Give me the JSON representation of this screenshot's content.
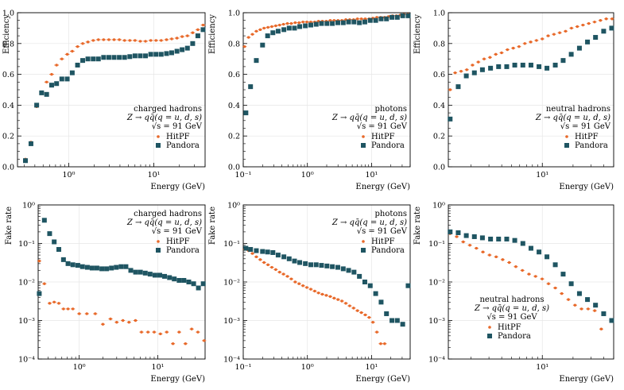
{
  "colors": {
    "hitpf": "#e8692a",
    "pandora": "#1f5562",
    "grid": "#e6e6e6"
  },
  "chart_data": [
    {
      "type": "scatter",
      "xscale": "log",
      "xlim": [
        0.25,
        40
      ],
      "yscale": "linear",
      "ylim": [
        0,
        1
      ],
      "xlabel": "Energy (GeV)",
      "ylabel": "Efficiency",
      "xticklabels": [
        "10^0",
        "10^1"
      ],
      "yticklabels": [
        "0.0",
        "0.2",
        "0.4",
        "0.6",
        "0.8",
        "1.0"
      ],
      "legend": {
        "position": "lower-right",
        "lines": [
          "charged hadrons",
          "Z → qq̄(q = u, d, s)",
          "√s = 91 GeV"
        ],
        "entries": [
          "HitPF",
          "Pandora"
        ]
      },
      "series": [
        {
          "name": "HitPF",
          "x": [
            0.31,
            0.36,
            0.42,
            0.48,
            0.55,
            0.63,
            0.72,
            0.83,
            0.96,
            1.1,
            1.27,
            1.46,
            1.68,
            1.94,
            2.23,
            2.57,
            2.96,
            3.41,
            3.93,
            4.53,
            5.22,
            6.01,
            6.93,
            7.98,
            9.2,
            10.6,
            12.2,
            14.1,
            16.2,
            18.7,
            21.5,
            24.8,
            28.6,
            32.9,
            37.9
          ],
          "y": [
            0.05,
            0.16,
            0.39,
            0.48,
            0.55,
            0.6,
            0.66,
            0.7,
            0.73,
            0.75,
            0.78,
            0.8,
            0.81,
            0.82,
            0.825,
            0.825,
            0.825,
            0.825,
            0.825,
            0.82,
            0.82,
            0.82,
            0.815,
            0.815,
            0.82,
            0.82,
            0.82,
            0.825,
            0.83,
            0.835,
            0.845,
            0.85,
            0.87,
            0.89,
            0.92
          ]
        },
        {
          "name": "Pandora",
          "x": [
            0.31,
            0.36,
            0.42,
            0.48,
            0.55,
            0.63,
            0.72,
            0.83,
            0.96,
            1.1,
            1.27,
            1.46,
            1.68,
            1.94,
            2.23,
            2.57,
            2.96,
            3.41,
            3.93,
            4.53,
            5.22,
            6.01,
            6.93,
            7.98,
            9.2,
            10.6,
            12.2,
            14.1,
            16.2,
            18.7,
            21.5,
            24.8,
            28.6,
            32.9,
            37.9
          ],
          "y": [
            0.04,
            0.15,
            0.4,
            0.48,
            0.47,
            0.53,
            0.54,
            0.57,
            0.57,
            0.61,
            0.66,
            0.69,
            0.7,
            0.7,
            0.7,
            0.71,
            0.71,
            0.71,
            0.71,
            0.71,
            0.715,
            0.72,
            0.72,
            0.72,
            0.73,
            0.73,
            0.73,
            0.735,
            0.74,
            0.75,
            0.76,
            0.77,
            0.8,
            0.85,
            0.89
          ]
        }
      ]
    },
    {
      "type": "scatter",
      "xscale": "log",
      "xlim": [
        0.1,
        40
      ],
      "yscale": "linear",
      "ylim": [
        0,
        1
      ],
      "xlabel": "Energy (GeV)",
      "ylabel": "Efficiency",
      "xticklabels": [
        "10^-1",
        "10^0",
        "10^1"
      ],
      "yticklabels": [
        "0.0",
        "0.2",
        "0.4",
        "0.6",
        "0.8",
        "1.0"
      ],
      "legend": {
        "position": "lower-right",
        "lines": [
          "photons",
          "Z → qq̄(q = u, d, s)",
          "√s = 91 GeV"
        ],
        "entries": [
          "HitPF",
          "Pandora"
        ]
      },
      "series": [
        {
          "name": "HitPF",
          "x": [
            0.105,
            0.121,
            0.139,
            0.16,
            0.184,
            0.211,
            0.243,
            0.279,
            0.321,
            0.369,
            0.424,
            0.488,
            0.561,
            0.645,
            0.742,
            0.853,
            0.981,
            1.13,
            1.3,
            1.49,
            1.71,
            1.97,
            2.27,
            2.61,
            3.0,
            3.45,
            3.97,
            4.56,
            5.25,
            6.03,
            6.94,
            7.98,
            9.17,
            10.5,
            12.1,
            13.9,
            16.0,
            18.4,
            21.2,
            24.4,
            28.0,
            32.2,
            37.0
          ],
          "y": [
            0.78,
            0.84,
            0.86,
            0.88,
            0.89,
            0.9,
            0.905,
            0.91,
            0.915,
            0.92,
            0.925,
            0.93,
            0.93,
            0.935,
            0.935,
            0.94,
            0.94,
            0.94,
            0.94,
            0.945,
            0.945,
            0.945,
            0.95,
            0.95,
            0.95,
            0.95,
            0.955,
            0.955,
            0.955,
            0.96,
            0.96,
            0.96,
            0.96,
            0.965,
            0.97,
            0.97,
            0.97,
            0.975,
            0.98,
            0.98,
            0.985,
            0.99,
            0.99
          ]
        },
        {
          "name": "Pandora",
          "x": [
            0.11,
            0.13,
            0.16,
            0.2,
            0.24,
            0.29,
            0.35,
            0.43,
            0.52,
            0.63,
            0.76,
            0.93,
            1.13,
            1.37,
            1.66,
            2.02,
            2.45,
            2.98,
            3.62,
            4.39,
            5.33,
            6.47,
            7.86,
            9.54,
            11.6,
            14.1,
            17.1,
            20.8,
            25.2,
            30.6,
            37.2
          ],
          "y": [
            0.35,
            0.52,
            0.69,
            0.79,
            0.85,
            0.87,
            0.88,
            0.89,
            0.9,
            0.9,
            0.91,
            0.915,
            0.92,
            0.925,
            0.93,
            0.93,
            0.93,
            0.935,
            0.935,
            0.94,
            0.94,
            0.935,
            0.94,
            0.95,
            0.95,
            0.96,
            0.96,
            0.97,
            0.97,
            0.98,
            0.98
          ]
        }
      ]
    },
    {
      "type": "scatter",
      "xscale": "log",
      "xlim": [
        1.2,
        50
      ],
      "yscale": "linear",
      "ylim": [
        0,
        1
      ],
      "xlabel": "Energy (GeV)",
      "ylabel": "Efficiency",
      "xticklabels": [
        "10^1"
      ],
      "yticklabels": [
        "0.0",
        "0.2",
        "0.4",
        "0.6",
        "0.8",
        "1.0"
      ],
      "legend": {
        "position": "lower-right",
        "lines": [
          "neutral hadrons",
          "Z → qq̄(q = u, d, s)",
          "√s = 91 GeV"
        ],
        "entries": [
          "HitPF",
          "Pandora"
        ]
      },
      "series": [
        {
          "name": "HitPF",
          "x": [
            1.25,
            1.4,
            1.6,
            1.82,
            2.07,
            2.36,
            2.69,
            3.07,
            3.5,
            3.99,
            4.55,
            5.19,
            5.91,
            6.74,
            7.69,
            8.76,
            9.99,
            11.4,
            13.0,
            14.8,
            16.9,
            19.3,
            22.0,
            25.0,
            28.5,
            32.5,
            37.1,
            42.3,
            48.2
          ],
          "y": [
            0.5,
            0.61,
            0.62,
            0.63,
            0.66,
            0.68,
            0.7,
            0.71,
            0.73,
            0.74,
            0.76,
            0.77,
            0.78,
            0.8,
            0.81,
            0.82,
            0.83,
            0.85,
            0.86,
            0.87,
            0.88,
            0.9,
            0.91,
            0.92,
            0.93,
            0.94,
            0.95,
            0.96,
            0.96
          ]
        },
        {
          "name": "Pandora",
          "x": [
            1.25,
            1.5,
            1.8,
            2.16,
            2.59,
            3.11,
            3.73,
            4.48,
            5.37,
            6.45,
            7.74,
            9.28,
            11.1,
            13.4,
            16.0,
            19.2,
            23.1,
            27.7,
            33.2,
            39.9,
            47.8
          ],
          "y": [
            0.31,
            0.52,
            0.59,
            0.61,
            0.63,
            0.64,
            0.65,
            0.65,
            0.66,
            0.66,
            0.66,
            0.65,
            0.64,
            0.66,
            0.69,
            0.73,
            0.77,
            0.81,
            0.84,
            0.88,
            0.9
          ]
        }
      ]
    },
    {
      "type": "scatter",
      "xscale": "log",
      "xlim": [
        0.3,
        40
      ],
      "yscale": "log",
      "ylim": [
        0.0001,
        1
      ],
      "xlabel": "Energy (GeV)",
      "ylabel": "Fake rate",
      "xticklabels": [
        "10^0",
        "10^1"
      ],
      "yticklabels": [
        "10^-4",
        "10^-3",
        "10^-2",
        "10^-1",
        "10^0"
      ],
      "legend": {
        "position": "top-right",
        "lines": [
          "charged hadrons",
          "Z → qq̄(q = u, d, s)",
          "√s = 91 GeV"
        ],
        "entries": [
          "HitPF",
          "Pandora"
        ]
      },
      "series": [
        {
          "name": "HitPF",
          "x": [
            0.31,
            0.36,
            0.42,
            0.48,
            0.55,
            0.63,
            0.72,
            0.83,
            1.0,
            1.25,
            1.6,
            2.0,
            2.5,
            3.0,
            3.6,
            4.3,
            5.2,
            6.2,
            7.5,
            9.0,
            10.8,
            13.0,
            15.6,
            18.7,
            22.5,
            27.0,
            32.4,
            38.9
          ],
          "y": [
            0.035,
            0.009,
            0.0028,
            0.003,
            0.0028,
            0.002,
            0.002,
            0.002,
            0.0015,
            0.0015,
            0.0015,
            0.0008,
            0.0011,
            0.0009,
            0.001,
            0.0009,
            0.001,
            0.0005,
            0.0005,
            0.0005,
            0.00045,
            0.0005,
            0.00025,
            0.0005,
            0.00025,
            0.0006,
            0.0005,
            0.0003
          ]
        },
        {
          "name": "Pandora",
          "x": [
            0.31,
            0.36,
            0.42,
            0.48,
            0.55,
            0.63,
            0.72,
            0.83,
            0.96,
            1.1,
            1.27,
            1.46,
            1.68,
            1.94,
            2.23,
            2.57,
            2.96,
            3.41,
            3.93,
            4.53,
            5.22,
            6.01,
            6.93,
            7.98,
            9.2,
            10.6,
            12.2,
            14.1,
            16.2,
            18.7,
            21.5,
            24.8,
            28.6,
            32.9,
            37.9
          ],
          "y": [
            0.005,
            0.4,
            0.18,
            0.11,
            0.07,
            0.038,
            0.03,
            0.028,
            0.027,
            0.025,
            0.024,
            0.023,
            0.023,
            0.022,
            0.022,
            0.023,
            0.024,
            0.025,
            0.025,
            0.02,
            0.018,
            0.018,
            0.017,
            0.016,
            0.015,
            0.015,
            0.014,
            0.013,
            0.012,
            0.011,
            0.011,
            0.01,
            0.009,
            0.007,
            0.009
          ]
        }
      ]
    },
    {
      "type": "scatter",
      "xscale": "log",
      "xlim": [
        0.1,
        40
      ],
      "yscale": "log",
      "ylim": [
        0.0001,
        1
      ],
      "xlabel": "Energy (GeV)",
      "ylabel": "Fake rate",
      "xticklabels": [
        "10^-1",
        "10^0",
        "10^1"
      ],
      "yticklabels": [
        "10^-4",
        "10^-3",
        "10^-2",
        "10^-1",
        "10^0"
      ],
      "legend": {
        "position": "top-right",
        "lines": [
          "photons",
          "Z → qq̄(q = u, d, s)",
          "√s = 91 GeV"
        ],
        "entries": [
          "HitPF",
          "Pandora"
        ]
      },
      "series": [
        {
          "name": "HitPF",
          "x": [
            0.105,
            0.121,
            0.139,
            0.16,
            0.184,
            0.211,
            0.243,
            0.279,
            0.321,
            0.369,
            0.424,
            0.488,
            0.561,
            0.645,
            0.742,
            0.853,
            0.981,
            1.13,
            1.3,
            1.49,
            1.71,
            1.97,
            2.27,
            2.61,
            3.0,
            3.45,
            3.97,
            4.56,
            5.25,
            6.03,
            6.94,
            7.98,
            9.17,
            10.5,
            12.1,
            13.9,
            16.0
          ],
          "y": [
            0.07,
            0.065,
            0.055,
            0.045,
            0.038,
            0.032,
            0.028,
            0.024,
            0.021,
            0.018,
            0.016,
            0.014,
            0.012,
            0.01,
            0.009,
            0.008,
            0.0072,
            0.0065,
            0.0058,
            0.0052,
            0.0048,
            0.0045,
            0.0042,
            0.0038,
            0.0035,
            0.0032,
            0.0028,
            0.0024,
            0.0021,
            0.0018,
            0.0016,
            0.0014,
            0.0012,
            0.0009,
            0.0005,
            0.00025,
            0.00025
          ]
        },
        {
          "name": "Pandora",
          "x": [
            0.11,
            0.13,
            0.16,
            0.2,
            0.24,
            0.29,
            0.35,
            0.43,
            0.52,
            0.63,
            0.76,
            0.93,
            1.13,
            1.37,
            1.66,
            2.02,
            2.45,
            2.98,
            3.62,
            4.39,
            5.33,
            6.47,
            7.86,
            9.54,
            11.6,
            14.1,
            17.1,
            20.8,
            25.2,
            30.6,
            37.2
          ],
          "y": [
            0.075,
            0.07,
            0.065,
            0.062,
            0.06,
            0.058,
            0.05,
            0.045,
            0.04,
            0.035,
            0.032,
            0.03,
            0.028,
            0.028,
            0.027,
            0.026,
            0.025,
            0.024,
            0.022,
            0.02,
            0.018,
            0.014,
            0.01,
            0.008,
            0.005,
            0.003,
            0.0015,
            0.001,
            0.001,
            0.0008,
            0.008
          ]
        }
      ]
    },
    {
      "type": "scatter",
      "xscale": "log",
      "xlim": [
        1.2,
        50
      ],
      "yscale": "log",
      "ylim": [
        0.0001,
        1
      ],
      "xlabel": "Energy (GeV)",
      "ylabel": "Fake rate",
      "xticklabels": [
        "10^1"
      ],
      "yticklabels": [
        "10^-4",
        "10^-3",
        "10^-2",
        "10^-1",
        "10^0"
      ],
      "legend": {
        "position": "lower-left",
        "lines": [
          "neutral hadrons",
          "Z → qq̄(q = u, d, s)",
          "√s = 91 GeV"
        ],
        "entries": [
          "HitPF",
          "Pandora"
        ]
      },
      "series": [
        {
          "name": "HitPF",
          "x": [
            1.25,
            1.45,
            1.68,
            1.95,
            2.26,
            2.62,
            3.04,
            3.53,
            4.09,
            4.74,
            5.5,
            6.38,
            7.4,
            8.58,
            9.96,
            11.5,
            13.4,
            15.5,
            18.0,
            20.9,
            24.2,
            28.1,
            32.6,
            37.8
          ],
          "y": [
            0.18,
            0.15,
            0.11,
            0.09,
            0.075,
            0.06,
            0.05,
            0.045,
            0.038,
            0.032,
            0.025,
            0.02,
            0.016,
            0.014,
            0.012,
            0.009,
            0.007,
            0.005,
            0.0035,
            0.0025,
            0.002,
            0.002,
            0.0018,
            0.0006
          ]
        },
        {
          "name": "Pandora",
          "x": [
            1.25,
            1.5,
            1.8,
            2.16,
            2.59,
            3.11,
            3.73,
            4.48,
            5.37,
            6.45,
            7.74,
            9.28,
            11.1,
            13.4,
            16.0,
            19.2,
            23.1,
            27.7,
            33.2,
            39.9,
            47.8
          ],
          "y": [
            0.2,
            0.19,
            0.16,
            0.15,
            0.14,
            0.13,
            0.13,
            0.13,
            0.12,
            0.1,
            0.075,
            0.06,
            0.045,
            0.028,
            0.016,
            0.009,
            0.005,
            0.0035,
            0.0025,
            0.0015,
            0.001
          ]
        }
      ]
    }
  ]
}
